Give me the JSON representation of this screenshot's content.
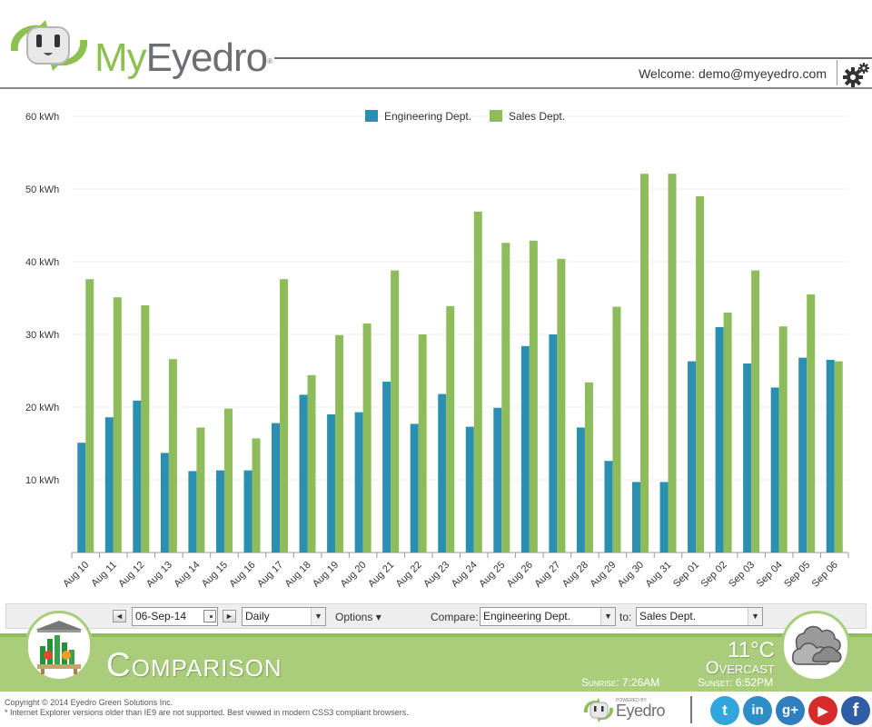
{
  "header": {
    "logo_my": "My",
    "logo_eyedro": "Eyedro",
    "logo_reg": "®",
    "welcome": "Welcome: demo@myeyedro.com"
  },
  "toolbar": {
    "prev_label": "◄",
    "next_label": "►",
    "date_value": "06-Sep-14",
    "period_value": "Daily",
    "options_label": "Options ▾",
    "compare_label": "Compare:",
    "compare_value": "Engineering Dept.",
    "to_label": "to:",
    "to_value": "Sales Dept."
  },
  "banner": {
    "title": "Comparison",
    "temperature": "11°C",
    "condition": "Overcast",
    "sunrise": "Sunrise: 7:26AM",
    "sunset": "Sunset: 6:52PM"
  },
  "footer": {
    "copyright": "Copyright © 2014 Eyedro Green Solutions Inc.",
    "browser_note": "* Internet Explorer versions older than IE9 are not supported. Best viewed in modern CSS3 compliant browsers.",
    "powered_by": "POWERED BY",
    "brand": "Eyedro",
    "social": [
      "t",
      "in",
      "g+",
      "▶",
      "f"
    ]
  },
  "colors": {
    "engineering": "#2a8fb0",
    "sales": "#8fbc5b",
    "banner": "#a9cd7a",
    "twitter": "#2fa6dc",
    "linkedin": "#2e8fc7",
    "google": "#2f7fbf",
    "youtube": "#d62b2b",
    "facebook": "#2f5ea5"
  },
  "chart_data": {
    "type": "bar",
    "categories": [
      "Aug 10",
      "Aug 11",
      "Aug 12",
      "Aug 13",
      "Aug 14",
      "Aug 15",
      "Aug 16",
      "Aug 17",
      "Aug 18",
      "Aug 19",
      "Aug 20",
      "Aug 21",
      "Aug 22",
      "Aug 23",
      "Aug 24",
      "Aug 25",
      "Aug 26",
      "Aug 27",
      "Aug 28",
      "Aug 29",
      "Aug 30",
      "Aug 31",
      "Sep 01",
      "Sep 02",
      "Sep 03",
      "Sep 04",
      "Sep 05",
      "Sep 06"
    ],
    "series": [
      {
        "name": "Engineering Dept.",
        "values": [
          15.1,
          18.6,
          20.9,
          13.7,
          11.2,
          11.3,
          11.3,
          17.8,
          21.7,
          19.0,
          19.3,
          23.5,
          17.7,
          21.8,
          17.3,
          19.9,
          28.4,
          30.0,
          17.2,
          12.6,
          9.7,
          9.7,
          26.3,
          31.0,
          26.0,
          22.7,
          26.8,
          26.5
        ]
      },
      {
        "name": "Sales Dept.",
        "values": [
          37.6,
          35.1,
          34.0,
          26.6,
          17.2,
          19.8,
          15.7,
          37.6,
          24.4,
          29.9,
          31.5,
          38.8,
          30.0,
          33.9,
          46.9,
          42.6,
          42.9,
          40.4,
          23.4,
          33.8,
          52.1,
          52.1,
          49.0,
          33.0,
          38.8,
          31.1,
          35.5,
          26.3
        ]
      }
    ],
    "ylim": [
      0,
      60
    ],
    "yticks": [
      10,
      20,
      30,
      40,
      50,
      60
    ],
    "ytick_labels": [
      "10 kWh",
      "20 kWh",
      "30 kWh",
      "40 kWh",
      "50 kWh",
      "60 kWh"
    ],
    "xlabel": "",
    "ylabel": "",
    "legend": "top-center",
    "grid": true
  }
}
